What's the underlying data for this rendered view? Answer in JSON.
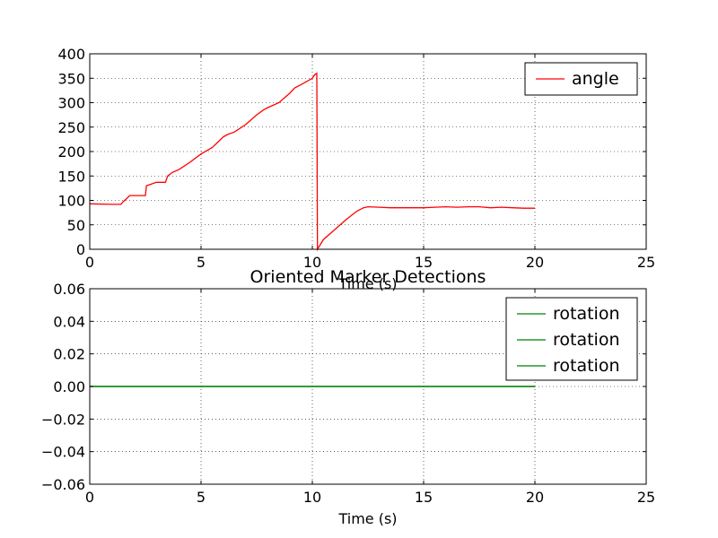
{
  "chart_data": [
    {
      "type": "line",
      "title": "",
      "xlabel": "Time (s)",
      "ylabel": "",
      "xlim": [
        0,
        25
      ],
      "ylim": [
        0,
        400
      ],
      "xticks": [
        "0",
        "5",
        "10",
        "15",
        "20",
        "25"
      ],
      "yticks": [
        "0",
        "50",
        "100",
        "150",
        "200",
        "250",
        "300",
        "350",
        "400"
      ],
      "grid": true,
      "legend_position": "top-right",
      "series": [
        {
          "name": "angle",
          "color": "#ff0000",
          "x": [
            0,
            1.0,
            1.4,
            1.5,
            1.8,
            2.0,
            2.5,
            2.55,
            3.0,
            3.4,
            3.5,
            3.7,
            4.0,
            4.5,
            5.0,
            5.5,
            6.0,
            6.2,
            6.5,
            7.0,
            7.5,
            7.8,
            8.0,
            8.5,
            9.0,
            9.2,
            9.5,
            10.0,
            10.1,
            10.2,
            10.23,
            10.5,
            11.0,
            11.5,
            12.0,
            12.3,
            12.5,
            13.0,
            13.5,
            14.0,
            14.5,
            15.0,
            15.5,
            16.0,
            16.5,
            17.0,
            17.5,
            18.0,
            18.5,
            19.0,
            19.5,
            20.0
          ],
          "y": [
            93,
            92,
            92,
            97,
            110,
            110,
            110,
            130,
            137,
            137,
            150,
            157,
            163,
            178,
            195,
            208,
            230,
            235,
            240,
            255,
            275,
            285,
            290,
            300,
            320,
            330,
            337,
            350,
            357,
            360,
            0,
            20,
            40,
            60,
            78,
            85,
            87,
            86,
            85,
            85,
            85,
            85,
            86,
            87,
            86,
            87,
            87,
            85,
            86,
            85,
            84,
            84
          ]
        }
      ]
    },
    {
      "type": "line",
      "title": "Oriented Marker Detections",
      "xlabel": "Time (s)",
      "ylabel": "",
      "xlim": [
        0,
        25
      ],
      "ylim": [
        -0.06,
        0.06
      ],
      "xticks": [
        "0",
        "5",
        "10",
        "15",
        "20",
        "25"
      ],
      "yticks": [
        "0.06",
        "0.04",
        "0.02",
        "0.00",
        "−0.02",
        "−0.04",
        "−0.06"
      ],
      "grid": true,
      "legend_position": "top-right",
      "series": [
        {
          "name": "rotation",
          "color": "#008000",
          "x": [
            0,
            20
          ],
          "y": [
            0,
            0
          ]
        },
        {
          "name": "rotation",
          "color": "#008000",
          "x": [
            0,
            20
          ],
          "y": [
            0,
            0
          ]
        },
        {
          "name": "rotation",
          "color": "#008000",
          "x": [
            0,
            20
          ],
          "y": [
            0,
            0
          ]
        }
      ]
    }
  ]
}
